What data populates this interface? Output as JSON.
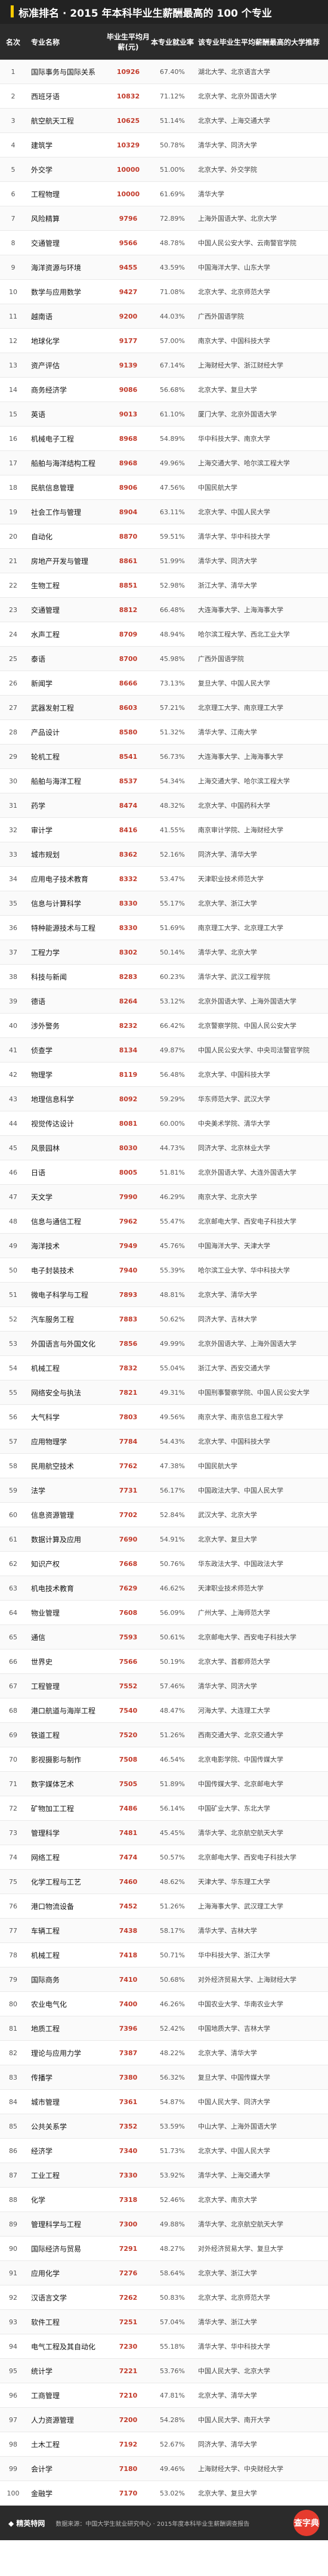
{
  "title": "标准排名 · 2015 年本科毕业生薪酬最高的 100 个专业",
  "headers": {
    "rank": "名次",
    "major": "专业名称",
    "salary": "毕业生平均月薪(元)",
    "rate": "本专业就业率",
    "schools": "该专业毕业生平均薪酬最高的大学推荐"
  },
  "rows": [
    {
      "rank": "1",
      "major": "国际事务与国际关系",
      "salary": "10926",
      "rate": "67.40%",
      "schools": "湖北大学、北京语言大学"
    },
    {
      "rank": "2",
      "major": "西班牙语",
      "salary": "10832",
      "rate": "71.12%",
      "schools": "北京大学、北京外国语大学"
    },
    {
      "rank": "3",
      "major": "航空航天工程",
      "salary": "10625",
      "rate": "51.14%",
      "schools": "北京大学、上海交通大学"
    },
    {
      "rank": "4",
      "major": "建筑学",
      "salary": "10329",
      "rate": "50.78%",
      "schools": "清华大学、同济大学"
    },
    {
      "rank": "5",
      "major": "外交学",
      "salary": "10000",
      "rate": "51.00%",
      "schools": "北京大学、外交学院"
    },
    {
      "rank": "6",
      "major": "工程物理",
      "salary": "10000",
      "rate": "61.69%",
      "schools": "清华大学"
    },
    {
      "rank": "7",
      "major": "风险精算",
      "salary": "9796",
      "rate": "72.89%",
      "schools": "上海外国语大学、北京大学"
    },
    {
      "rank": "8",
      "major": "交通管理",
      "salary": "9566",
      "rate": "48.78%",
      "schools": "中国人民公安大学、云南警官学院"
    },
    {
      "rank": "9",
      "major": "海洋资源与环境",
      "salary": "9455",
      "rate": "43.59%",
      "schools": "中国海洋大学、山东大学"
    },
    {
      "rank": "10",
      "major": "数学与应用数学",
      "salary": "9427",
      "rate": "71.08%",
      "schools": "北京大学、北京师范大学"
    },
    {
      "rank": "11",
      "major": "越南语",
      "salary": "9200",
      "rate": "44.03%",
      "schools": "广西外国语学院"
    },
    {
      "rank": "12",
      "major": "地球化学",
      "salary": "9177",
      "rate": "57.00%",
      "schools": "南京大学、中国科技大学"
    },
    {
      "rank": "13",
      "major": "资产评估",
      "salary": "9139",
      "rate": "67.14%",
      "schools": "上海财经大学、浙江财经大学"
    },
    {
      "rank": "14",
      "major": "商务经济学",
      "salary": "9086",
      "rate": "56.68%",
      "schools": "北京大学、复旦大学"
    },
    {
      "rank": "15",
      "major": "英语",
      "salary": "9013",
      "rate": "61.10%",
      "schools": "厦门大学、北京外国语大学"
    },
    {
      "rank": "16",
      "major": "机械电子工程",
      "salary": "8968",
      "rate": "54.89%",
      "schools": "华中科技大学、南京大学"
    },
    {
      "rank": "17",
      "major": "船舶与海洋结构工程",
      "salary": "8968",
      "rate": "49.96%",
      "schools": "上海交通大学、哈尔滨工程大学"
    },
    {
      "rank": "18",
      "major": "民航信息管理",
      "salary": "8906",
      "rate": "47.56%",
      "schools": "中国民航大学"
    },
    {
      "rank": "19",
      "major": "社会工作与管理",
      "salary": "8904",
      "rate": "63.11%",
      "schools": "北京大学、中国人民大学"
    },
    {
      "rank": "20",
      "major": "自动化",
      "salary": "8870",
      "rate": "59.51%",
      "schools": "清华大学、华中科技大学"
    },
    {
      "rank": "21",
      "major": "房地产开发与管理",
      "salary": "8861",
      "rate": "51.99%",
      "schools": "清华大学、同济大学"
    },
    {
      "rank": "22",
      "major": "生物工程",
      "salary": "8851",
      "rate": "52.98%",
      "schools": "浙江大学、清华大学"
    },
    {
      "rank": "23",
      "major": "交通管理",
      "salary": "8812",
      "rate": "66.48%",
      "schools": "大连海事大学、上海海事大学"
    },
    {
      "rank": "24",
      "major": "水声工程",
      "salary": "8709",
      "rate": "48.94%",
      "schools": "哈尔滨工程大学、西北工业大学"
    },
    {
      "rank": "25",
      "major": "泰语",
      "salary": "8700",
      "rate": "45.98%",
      "schools": "广西外国语学院"
    },
    {
      "rank": "26",
      "major": "新闻学",
      "salary": "8666",
      "rate": "73.13%",
      "schools": "复旦大学、中国人民大学"
    },
    {
      "rank": "27",
      "major": "武器发射工程",
      "salary": "8603",
      "rate": "57.21%",
      "schools": "北京理工大学、南京理工大学"
    },
    {
      "rank": "28",
      "major": "产品设计",
      "salary": "8580",
      "rate": "51.32%",
      "schools": "清华大学、江南大学"
    },
    {
      "rank": "29",
      "major": "轮机工程",
      "salary": "8541",
      "rate": "56.73%",
      "schools": "大连海事大学、上海海事大学"
    },
    {
      "rank": "30",
      "major": "船舶与海洋工程",
      "salary": "8537",
      "rate": "54.34%",
      "schools": "上海交通大学、哈尔滨工程大学"
    },
    {
      "rank": "31",
      "major": "药学",
      "salary": "8474",
      "rate": "48.32%",
      "schools": "北京大学、中国药科大学"
    },
    {
      "rank": "32",
      "major": "审计学",
      "salary": "8416",
      "rate": "41.55%",
      "schools": "南京审计学院、上海财经大学"
    },
    {
      "rank": "33",
      "major": "城市规划",
      "salary": "8362",
      "rate": "52.16%",
      "schools": "同济大学、清华大学"
    },
    {
      "rank": "34",
      "major": "应用电子技术教育",
      "salary": "8332",
      "rate": "53.47%",
      "schools": "天津职业技术师范大学"
    },
    {
      "rank": "35",
      "major": "信息与计算科学",
      "salary": "8330",
      "rate": "55.17%",
      "schools": "北京大学、浙江大学"
    },
    {
      "rank": "36",
      "major": "特种能源技术与工程",
      "salary": "8330",
      "rate": "51.69%",
      "schools": "南京理工大学、北京理工大学"
    },
    {
      "rank": "37",
      "major": "工程力学",
      "salary": "8302",
      "rate": "50.14%",
      "schools": "清华大学、北京大学"
    },
    {
      "rank": "38",
      "major": "科技与新闻",
      "salary": "8283",
      "rate": "60.23%",
      "schools": "清华大学、武汉工程学院"
    },
    {
      "rank": "39",
      "major": "德语",
      "salary": "8264",
      "rate": "53.12%",
      "schools": "北京外国语大学、上海外国语大学"
    },
    {
      "rank": "40",
      "major": "涉外警务",
      "salary": "8232",
      "rate": "66.42%",
      "schools": "北京警察学院、中国人民公安大学"
    },
    {
      "rank": "41",
      "major": "侦查学",
      "salary": "8134",
      "rate": "49.87%",
      "schools": "中国人民公安大学、中央司法警官学院"
    },
    {
      "rank": "42",
      "major": "物理学",
      "salary": "8119",
      "rate": "56.48%",
      "schools": "北京大学、中国科技大学"
    },
    {
      "rank": "43",
      "major": "地理信息科学",
      "salary": "8092",
      "rate": "59.29%",
      "schools": "华东师范大学、武汉大学"
    },
    {
      "rank": "44",
      "major": "视觉传达设计",
      "salary": "8081",
      "rate": "60.00%",
      "schools": "中央美术学院、清华大学"
    },
    {
      "rank": "45",
      "major": "风景园林",
      "salary": "8030",
      "rate": "44.73%",
      "schools": "同济大学、北京林业大学"
    },
    {
      "rank": "46",
      "major": "日语",
      "salary": "8005",
      "rate": "51.81%",
      "schools": "北京外国语大学、大连外国语大学"
    },
    {
      "rank": "47",
      "major": "天文学",
      "salary": "7990",
      "rate": "46.29%",
      "schools": "南京大学、北京大学"
    },
    {
      "rank": "48",
      "major": "信息与通信工程",
      "salary": "7962",
      "rate": "55.47%",
      "schools": "北京邮电大学、西安电子科技大学"
    },
    {
      "rank": "49",
      "major": "海洋技术",
      "salary": "7949",
      "rate": "45.76%",
      "schools": "中国海洋大学、天津大学"
    },
    {
      "rank": "50",
      "major": "电子封装技术",
      "salary": "7940",
      "rate": "55.39%",
      "schools": "哈尔滨工业大学、华中科技大学"
    },
    {
      "rank": "51",
      "major": "微电子科学与工程",
      "salary": "7893",
      "rate": "48.81%",
      "schools": "北京大学、清华大学"
    },
    {
      "rank": "52",
      "major": "汽车服务工程",
      "salary": "7883",
      "rate": "50.62%",
      "schools": "同济大学、吉林大学"
    },
    {
      "rank": "53",
      "major": "外国语言与外国文化",
      "salary": "7856",
      "rate": "49.99%",
      "schools": "北京外国语大学、上海外国语大学"
    },
    {
      "rank": "54",
      "major": "机械工程",
      "salary": "7832",
      "rate": "55.04%",
      "schools": "浙江大学、西安交通大学"
    },
    {
      "rank": "55",
      "major": "网络安全与执法",
      "salary": "7821",
      "rate": "49.31%",
      "schools": "中国刑事警察学院、中国人民公安大学"
    },
    {
      "rank": "56",
      "major": "大气科学",
      "salary": "7803",
      "rate": "49.56%",
      "schools": "南京大学、南京信息工程大学"
    },
    {
      "rank": "57",
      "major": "应用物理学",
      "salary": "7784",
      "rate": "54.43%",
      "schools": "北京大学、中国科技大学"
    },
    {
      "rank": "58",
      "major": "民用航空技术",
      "salary": "7762",
      "rate": "47.38%",
      "schools": "中国民航大学"
    },
    {
      "rank": "59",
      "major": "法学",
      "salary": "7731",
      "rate": "56.17%",
      "schools": "中国政法大学、中国人民大学"
    },
    {
      "rank": "60",
      "major": "信息资源管理",
      "salary": "7702",
      "rate": "52.84%",
      "schools": "武汉大学、北京大学"
    },
    {
      "rank": "61",
      "major": "数据计算及应用",
      "salary": "7690",
      "rate": "54.91%",
      "schools": "北京大学、复旦大学"
    },
    {
      "rank": "62",
      "major": "知识产权",
      "salary": "7668",
      "rate": "50.76%",
      "schools": "华东政法大学、中国政法大学"
    },
    {
      "rank": "63",
      "major": "机电技术教育",
      "salary": "7629",
      "rate": "46.62%",
      "schools": "天津职业技术师范大学"
    },
    {
      "rank": "64",
      "major": "物业管理",
      "salary": "7608",
      "rate": "56.09%",
      "schools": "广州大学、上海师范大学"
    },
    {
      "rank": "65",
      "major": "通信",
      "salary": "7593",
      "rate": "50.61%",
      "schools": "北京邮电大学、西安电子科技大学"
    },
    {
      "rank": "66",
      "major": "世界史",
      "salary": "7566",
      "rate": "50.19%",
      "schools": "北京大学、首都师范大学"
    },
    {
      "rank": "67",
      "major": "工程管理",
      "salary": "7552",
      "rate": "57.46%",
      "schools": "清华大学、同济大学"
    },
    {
      "rank": "68",
      "major": "港口航道与海岸工程",
      "salary": "7540",
      "rate": "48.47%",
      "schools": "河海大学、大连理工大学"
    },
    {
      "rank": "69",
      "major": "铁道工程",
      "salary": "7520",
      "rate": "51.26%",
      "schools": "西南交通大学、北京交通大学"
    },
    {
      "rank": "70",
      "major": "影视摄影与制作",
      "salary": "7508",
      "rate": "46.54%",
      "schools": "北京电影学院、中国传媒大学"
    },
    {
      "rank": "71",
      "major": "数字媒体艺术",
      "salary": "7505",
      "rate": "51.89%",
      "schools": "中国传媒大学、北京邮电大学"
    },
    {
      "rank": "72",
      "major": "矿物加工工程",
      "salary": "7486",
      "rate": "56.14%",
      "schools": "中国矿业大学、东北大学"
    },
    {
      "rank": "73",
      "major": "管理科学",
      "salary": "7481",
      "rate": "45.45%",
      "schools": "清华大学、北京航空航天大学"
    },
    {
      "rank": "74",
      "major": "网络工程",
      "salary": "7474",
      "rate": "50.57%",
      "schools": "北京邮电大学、西安电子科技大学"
    },
    {
      "rank": "75",
      "major": "化学工程与工艺",
      "salary": "7460",
      "rate": "48.62%",
      "schools": "天津大学、华东理工大学"
    },
    {
      "rank": "76",
      "major": "港口物流设备",
      "salary": "7452",
      "rate": "51.26%",
      "schools": "上海海事大学、武汉理工大学"
    },
    {
      "rank": "77",
      "major": "车辆工程",
      "salary": "7438",
      "rate": "58.17%",
      "schools": "清华大学、吉林大学"
    },
    {
      "rank": "78",
      "major": "机械工程",
      "salary": "7418",
      "rate": "50.71%",
      "schools": "华中科技大学、浙江大学"
    },
    {
      "rank": "79",
      "major": "国际商务",
      "salary": "7410",
      "rate": "50.68%",
      "schools": "对外经济贸易大学、上海财经大学"
    },
    {
      "rank": "80",
      "major": "农业电气化",
      "salary": "7400",
      "rate": "46.26%",
      "schools": "中国农业大学、华南农业大学"
    },
    {
      "rank": "81",
      "major": "地质工程",
      "salary": "7396",
      "rate": "52.42%",
      "schools": "中国地质大学、吉林大学"
    },
    {
      "rank": "82",
      "major": "理论与应用力学",
      "salary": "7387",
      "rate": "48.22%",
      "schools": "北京大学、清华大学"
    },
    {
      "rank": "83",
      "major": "传播学",
      "salary": "7380",
      "rate": "56.32%",
      "schools": "复旦大学、中国传媒大学"
    },
    {
      "rank": "84",
      "major": "城市管理",
      "salary": "7361",
      "rate": "54.87%",
      "schools": "中国人民大学、同济大学"
    },
    {
      "rank": "85",
      "major": "公共关系学",
      "salary": "7352",
      "rate": "53.59%",
      "schools": "中山大学、上海外国语大学"
    },
    {
      "rank": "86",
      "major": "经济学",
      "salary": "7340",
      "rate": "51.73%",
      "schools": "北京大学、中国人民大学"
    },
    {
      "rank": "87",
      "major": "工业工程",
      "salary": "7330",
      "rate": "53.92%",
      "schools": "清华大学、上海交通大学"
    },
    {
      "rank": "88",
      "major": "化学",
      "salary": "7318",
      "rate": "52.46%",
      "schools": "北京大学、南京大学"
    },
    {
      "rank": "89",
      "major": "管理科学与工程",
      "salary": "7300",
      "rate": "49.88%",
      "schools": "清华大学、北京航空航天大学"
    },
    {
      "rank": "90",
      "major": "国际经济与贸易",
      "salary": "7291",
      "rate": "48.27%",
      "schools": "对外经济贸易大学、复旦大学"
    },
    {
      "rank": "91",
      "major": "应用化学",
      "salary": "7276",
      "rate": "58.64%",
      "schools": "北京大学、浙江大学"
    },
    {
      "rank": "92",
      "major": "汉语言文学",
      "salary": "7262",
      "rate": "50.83%",
      "schools": "北京大学、北京师范大学"
    },
    {
      "rank": "93",
      "major": "软件工程",
      "salary": "7251",
      "rate": "57.04%",
      "schools": "清华大学、浙江大学"
    },
    {
      "rank": "94",
      "major": "电气工程及其自动化",
      "salary": "7230",
      "rate": "55.18%",
      "schools": "清华大学、华中科技大学"
    },
    {
      "rank": "95",
      "major": "统计学",
      "salary": "7221",
      "rate": "53.76%",
      "schools": "中国人民大学、北京大学"
    },
    {
      "rank": "96",
      "major": "工商管理",
      "salary": "7210",
      "rate": "47.81%",
      "schools": "北京大学、清华大学"
    },
    {
      "rank": "97",
      "major": "人力资源管理",
      "salary": "7200",
      "rate": "54.28%",
      "schools": "中国人民大学、南开大学"
    },
    {
      "rank": "98",
      "major": "土木工程",
      "salary": "7192",
      "rate": "52.67%",
      "schools": "同济大学、清华大学"
    },
    {
      "rank": "99",
      "major": "会计学",
      "salary": "7180",
      "rate": "49.46%",
      "schools": "上海财经大学、中央财经大学"
    },
    {
      "rank": "100",
      "major": "金融学",
      "salary": "7170",
      "rate": "53.02%",
      "schools": "北京大学、复旦大学"
    }
  ],
  "footer": {
    "logo": "◆ 精英特网",
    "note": "数据来源：中国大学生就业研究中心 · 2015年度本科毕业生薪酬调查报告",
    "badge": "查字典"
  }
}
